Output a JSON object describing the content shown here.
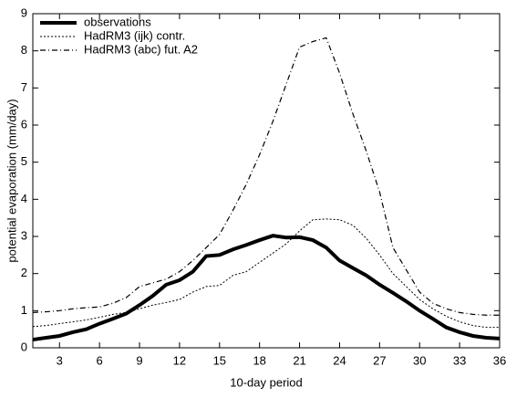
{
  "chart_data": {
    "type": "line",
    "x_label": "10-day period",
    "y_label": "potential evaporation (mm/day)",
    "x": [
      1,
      2,
      3,
      4,
      5,
      6,
      7,
      8,
      9,
      10,
      11,
      12,
      13,
      14,
      15,
      16,
      17,
      18,
      19,
      20,
      21,
      22,
      23,
      24,
      25,
      26,
      27,
      28,
      29,
      30,
      31,
      32,
      33,
      34,
      35,
      36
    ],
    "xlim": [
      1,
      36
    ],
    "xticks": [
      3,
      6,
      9,
      12,
      15,
      18,
      21,
      24,
      27,
      30,
      33,
      36
    ],
    "ylim": [
      0,
      9
    ],
    "yticks": [
      0,
      1,
      2,
      3,
      4,
      5,
      6,
      7,
      8,
      9
    ],
    "legend": "top-left",
    "series": [
      {
        "name": "observations",
        "color": "#000000",
        "style": "thick",
        "values": [
          0.22,
          0.27,
          0.32,
          0.42,
          0.5,
          0.65,
          0.78,
          0.92,
          1.15,
          1.4,
          1.7,
          1.82,
          2.05,
          2.47,
          2.5,
          2.65,
          2.77,
          2.9,
          3.02,
          2.97,
          2.98,
          2.9,
          2.7,
          2.35,
          2.15,
          1.95,
          1.7,
          1.48,
          1.25,
          1.0,
          0.78,
          0.55,
          0.42,
          0.32,
          0.27,
          0.25
        ]
      },
      {
        "name": "HadRM3 (ijk) contr.",
        "color": "#000000",
        "style": "dotted",
        "values": [
          0.57,
          0.6,
          0.65,
          0.7,
          0.75,
          0.82,
          0.9,
          0.95,
          1.05,
          1.15,
          1.22,
          1.3,
          1.5,
          1.65,
          1.68,
          1.95,
          2.05,
          2.3,
          2.55,
          2.8,
          3.15,
          3.45,
          3.47,
          3.45,
          3.3,
          2.95,
          2.5,
          2.0,
          1.65,
          1.3,
          1.05,
          0.85,
          0.7,
          0.6,
          0.55,
          0.55
        ]
      },
      {
        "name": "HadRM3 (abc) fut. A2",
        "color": "#000000",
        "style": "dashdot",
        "values": [
          0.95,
          0.97,
          1.0,
          1.05,
          1.08,
          1.1,
          1.2,
          1.35,
          1.65,
          1.75,
          1.85,
          2.05,
          2.35,
          2.7,
          3.05,
          3.7,
          4.4,
          5.2,
          6.1,
          7.1,
          8.1,
          8.25,
          8.35,
          7.4,
          6.3,
          5.3,
          4.2,
          2.7,
          2.1,
          1.5,
          1.2,
          1.05,
          0.95,
          0.9,
          0.88,
          0.88
        ]
      }
    ]
  }
}
